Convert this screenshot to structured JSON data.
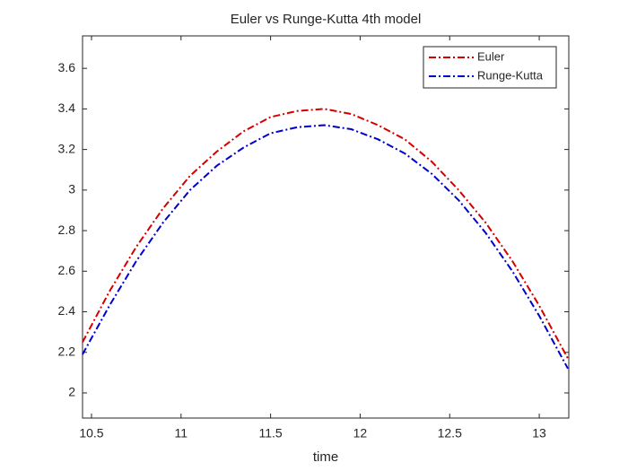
{
  "chart_data": {
    "type": "line",
    "title": "Euler vs Runge-Kutta 4th model",
    "xlabel": "time",
    "x": [
      10.45,
      10.6,
      10.75,
      10.9,
      11.05,
      11.2,
      11.35,
      11.5,
      11.65,
      11.8,
      11.95,
      12.1,
      12.25,
      12.4,
      12.55,
      12.7,
      12.85,
      13.0,
      13.16
    ],
    "series": [
      {
        "name": "Euler",
        "color": "#d40000",
        "values": [
          2.25,
          2.5,
          2.72,
          2.91,
          3.07,
          3.19,
          3.29,
          3.36,
          3.39,
          3.4,
          3.375,
          3.32,
          3.25,
          3.14,
          3.0,
          2.84,
          2.65,
          2.43,
          2.17
        ]
      },
      {
        "name": "Runge-Kutta",
        "color": "#0000cc",
        "values": [
          2.19,
          2.43,
          2.65,
          2.84,
          3.0,
          3.12,
          3.21,
          3.28,
          3.31,
          3.32,
          3.3,
          3.25,
          3.18,
          3.08,
          2.95,
          2.79,
          2.6,
          2.38,
          2.12
        ]
      }
    ],
    "xlim": [
      10.45,
      13.165
    ],
    "xticks": [
      10.5,
      11,
      11.5,
      12,
      12.5,
      13
    ],
    "ylim": [
      1.876,
      3.76
    ],
    "yticks": [
      2,
      2.2,
      2.4,
      2.6,
      2.8,
      3,
      3.2,
      3.4,
      3.6
    ],
    "legend": "northeast"
  }
}
